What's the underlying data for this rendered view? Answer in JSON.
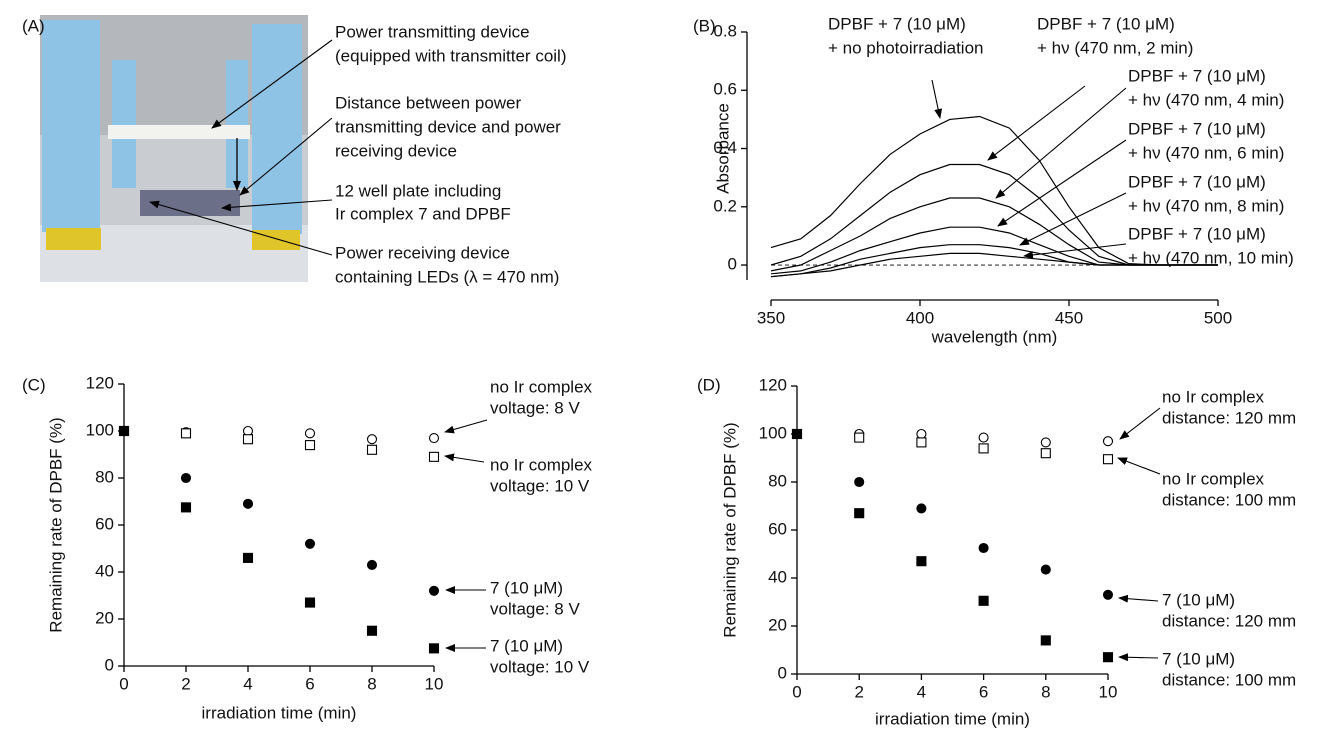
{
  "figure_a": {
    "panel_label": "(A)",
    "annotations": [
      [
        "Power transmitting device",
        "(equipped with transmitter coil)"
      ],
      [
        "Distance between power",
        "transmitting device and power",
        "receiving device"
      ],
      [
        "12 well plate including",
        "Ir complex 7 and DPBF"
      ],
      [
        "Power receiving device",
        "containing LEDs (λ = 470 nm)"
      ]
    ]
  },
  "chart_data": [
    {
      "type": "line",
      "panel_label": "(B)",
      "xlabel": "wavelength (nm)",
      "ylabel": "Absorbance",
      "xlim": [
        350,
        500
      ],
      "xticks": [
        350,
        400,
        450,
        500
      ],
      "ylim": [
        -0.12,
        0.8
      ],
      "yticks": [
        0,
        0.2,
        0.4,
        0.6,
        0.8
      ],
      "zero_line": true,
      "x": [
        350,
        360,
        370,
        380,
        390,
        400,
        410,
        420,
        430,
        440,
        450,
        460,
        470,
        480,
        490,
        500
      ],
      "series": [
        {
          "name": [
            "DPBF + 7 (10 μM)",
            "+ no photoirradiation"
          ],
          "color": "#000",
          "values": [
            0.06,
            0.09,
            0.17,
            0.28,
            0.38,
            0.45,
            0.5,
            0.51,
            0.47,
            0.36,
            0.2,
            0.06,
            0.005,
            0,
            0,
            0
          ]
        },
        {
          "name": [
            "DPBF + 7 (10 μM)",
            "+ hν (470 nm, 2 min)"
          ],
          "color": "#000",
          "values": [
            0,
            0.03,
            0.09,
            0.17,
            0.25,
            0.31,
            0.345,
            0.345,
            0.31,
            0.23,
            0.12,
            0.03,
            0,
            0,
            0,
            0
          ]
        },
        {
          "name": [
            "DPBF + 7 (10 μM)",
            "+ hν (470 nm, 4 min)"
          ],
          "color": "#000",
          "values": [
            -0.02,
            0,
            0.05,
            0.1,
            0.16,
            0.2,
            0.23,
            0.23,
            0.2,
            0.14,
            0.07,
            0.01,
            0,
            0,
            0,
            0
          ]
        },
        {
          "name": [
            "DPBF + 7 (10 μM)",
            "+ hν (470 nm, 6 min)"
          ],
          "color": "#000",
          "values": [
            -0.03,
            -0.02,
            0.01,
            0.05,
            0.08,
            0.11,
            0.13,
            0.13,
            0.11,
            0.07,
            0.03,
            0,
            0,
            0,
            0,
            0
          ]
        },
        {
          "name": [
            "DPBF + 7 (10 μM)",
            "+ hν (470 nm, 8 min)"
          ],
          "color": "#000",
          "values": [
            -0.04,
            -0.03,
            -0.01,
            0.02,
            0.04,
            0.06,
            0.07,
            0.07,
            0.06,
            0.04,
            0.01,
            0,
            0,
            0,
            0,
            0
          ]
        },
        {
          "name": [
            "DPBF + 7 (10 μM)",
            "+ hν (470 nm, 10 min)"
          ],
          "color": "#000",
          "values": [
            -0.04,
            -0.03,
            -0.02,
            0,
            0.02,
            0.03,
            0.04,
            0.04,
            0.03,
            0.02,
            0.01,
            0,
            0,
            0,
            0,
            0
          ]
        }
      ]
    },
    {
      "type": "scatter",
      "panel_label": "(C)",
      "xlabel": "irradiation time (min)",
      "ylabel": "Remaining rate of DPBF (%)",
      "xlim": [
        0,
        10
      ],
      "xticks": [
        0,
        2,
        4,
        6,
        8,
        10
      ],
      "ylim": [
        0,
        120
      ],
      "yticks": [
        0,
        20,
        40,
        60,
        80,
        100,
        120
      ],
      "x": [
        0,
        2,
        4,
        6,
        8,
        10
      ],
      "series": [
        {
          "name": [
            "no Ir complex",
            "voltage: 8 V"
          ],
          "marker": "circle-open",
          "color": "#000",
          "values": [
            100,
            99.5,
            100,
            99,
            96.5,
            97
          ]
        },
        {
          "name": [
            "no Ir complex",
            "voltage: 10 V"
          ],
          "marker": "square-open",
          "color": "#000",
          "values": [
            100,
            99,
            96.5,
            94,
            92,
            89
          ]
        },
        {
          "name": [
            "7 (10 μM)",
            "voltage: 8 V"
          ],
          "marker": "circle",
          "color": "#000",
          "values": [
            100,
            80,
            69,
            52,
            43,
            32
          ]
        },
        {
          "name": [
            "7 (10 μM)",
            "voltage: 10 V"
          ],
          "marker": "square",
          "color": "#000",
          "values": [
            100,
            67.5,
            46,
            27,
            15,
            7.5
          ]
        }
      ]
    },
    {
      "type": "scatter",
      "panel_label": "(D)",
      "xlabel": "irradiation time (min)",
      "ylabel": "Remaining rate of DPBF (%)",
      "xlim": [
        0,
        10
      ],
      "xticks": [
        0,
        2,
        4,
        6,
        8,
        10
      ],
      "ylim": [
        0,
        120
      ],
      "yticks": [
        0,
        20,
        40,
        60,
        80,
        100,
        120
      ],
      "x": [
        0,
        2,
        4,
        6,
        8,
        10
      ],
      "series": [
        {
          "name": [
            "no Ir complex",
            "distance: 120 mm"
          ],
          "marker": "circle-open",
          "color": "#000",
          "values": [
            100,
            100,
            100,
            98.5,
            96.5,
            97
          ]
        },
        {
          "name": [
            "no Ir complex",
            "distance: 100 mm"
          ],
          "marker": "square-open",
          "color": "#000",
          "values": [
            100,
            98.5,
            96.5,
            94,
            92,
            89.5
          ]
        },
        {
          "name": [
            "7 (10 μM)",
            "distance: 120 mm"
          ],
          "marker": "circle",
          "color": "#000",
          "values": [
            100,
            80,
            69,
            52.5,
            43.5,
            33
          ]
        },
        {
          "name": [
            "7 (10 μM)",
            "distance: 100 mm"
          ],
          "marker": "square",
          "color": "#000",
          "values": [
            100,
            67,
            47,
            30.5,
            14,
            7
          ]
        }
      ]
    }
  ]
}
